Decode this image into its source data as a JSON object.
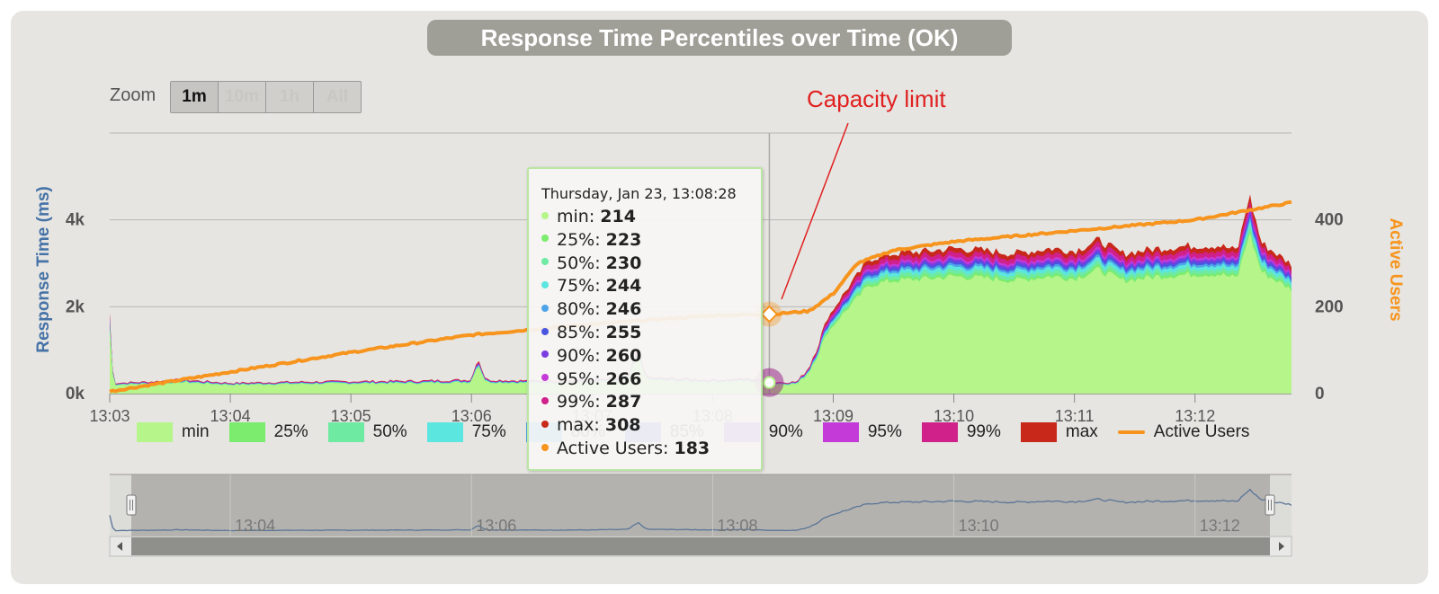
{
  "title": "Response Time Percentiles over Time (OK)",
  "zoom": {
    "label": "Zoom",
    "buttons": [
      {
        "label": "1m",
        "active": true
      },
      {
        "label": "10m",
        "active": false
      },
      {
        "label": "1h",
        "active": false
      },
      {
        "label": "All",
        "active": false
      }
    ]
  },
  "annotation": "Capacity limit",
  "tooltip": {
    "header": "Thursday, Jan 23, 13:08:28",
    "rows": [
      {
        "label": "min",
        "value": "214",
        "color": "#b5f58a"
      },
      {
        "label": "25%",
        "value": "223",
        "color": "#7bec6d"
      },
      {
        "label": "50%",
        "value": "230",
        "color": "#6eeaa3"
      },
      {
        "label": "75%",
        "value": "244",
        "color": "#5ce6e0"
      },
      {
        "label": "80%",
        "value": "246",
        "color": "#4ea4e9"
      },
      {
        "label": "85%",
        "value": "255",
        "color": "#4a55e0"
      },
      {
        "label": "90%",
        "value": "260",
        "color": "#7a3ce0"
      },
      {
        "label": "95%",
        "value": "266",
        "color": "#c43ad8"
      },
      {
        "label": "99%",
        "value": "287",
        "color": "#d0208a"
      },
      {
        "label": "max",
        "value": "308",
        "color": "#c8281a"
      },
      {
        "label": "Active Users",
        "value": "183",
        "color": "#f7941d"
      }
    ]
  },
  "chart_data": {
    "type": "area",
    "title": "Response Time Percentiles over Time (OK)",
    "x_ticks": [
      "13:03",
      "13:04",
      "13:05",
      "13:06",
      "13:07",
      "13:08",
      "13:09",
      "13:10",
      "13:11",
      "13:12"
    ],
    "y_left": {
      "label": "Response Time (ms)",
      "ticks": [
        "0k",
        "2k",
        "4k"
      ],
      "range": [
        0,
        6000
      ]
    },
    "y_right": {
      "label": "Active Users",
      "ticks": [
        "0",
        "200",
        "400"
      ],
      "range": [
        0,
        600
      ]
    },
    "x_range_minutes": [
      0,
      9.8
    ],
    "response_time_points": [
      [
        0,
        1500
      ],
      [
        0.03,
        200
      ],
      [
        0.3,
        220
      ],
      [
        0.6,
        260
      ],
      [
        1.0,
        200
      ],
      [
        1.5,
        220
      ],
      [
        2.0,
        230
      ],
      [
        2.6,
        240
      ],
      [
        3.0,
        260
      ],
      [
        3.05,
        700
      ],
      [
        3.12,
        260
      ],
      [
        3.5,
        240
      ],
      [
        4.0,
        250
      ],
      [
        4.3,
        300
      ],
      [
        4.38,
        850
      ],
      [
        4.46,
        300
      ],
      [
        5.0,
        260
      ],
      [
        5.3,
        280
      ],
      [
        5.5,
        214
      ],
      [
        5.7,
        220
      ],
      [
        5.8,
        500
      ],
      [
        5.95,
        1400
      ],
      [
        6.1,
        1900
      ],
      [
        6.3,
        2500
      ],
      [
        6.5,
        2600
      ],
      [
        6.8,
        2650
      ],
      [
        7.0,
        2700
      ],
      [
        7.3,
        2650
      ],
      [
        7.5,
        2600
      ],
      [
        7.8,
        2700
      ],
      [
        8.0,
        2650
      ],
      [
        8.2,
        2850
      ],
      [
        8.4,
        2600
      ],
      [
        8.7,
        2700
      ],
      [
        9.0,
        2750
      ],
      [
        9.2,
        2750
      ],
      [
        9.35,
        2650
      ],
      [
        9.45,
        3700
      ],
      [
        9.55,
        2800
      ],
      [
        9.8,
        2400
      ]
    ],
    "active_users_points": [
      [
        0,
        5
      ],
      [
        1,
        50
      ],
      [
        2,
        95
      ],
      [
        3,
        135
      ],
      [
        4,
        160
      ],
      [
        5,
        180
      ],
      [
        5.5,
        183
      ],
      [
        5.8,
        190
      ],
      [
        6.0,
        230
      ],
      [
        6.2,
        300
      ],
      [
        6.5,
        330
      ],
      [
        7.0,
        350
      ],
      [
        8.0,
        375
      ],
      [
        9.0,
        400
      ],
      [
        9.8,
        440
      ]
    ],
    "series": [
      {
        "name": "min",
        "color": "#b5f58a"
      },
      {
        "name": "25%",
        "color": "#7bec6d"
      },
      {
        "name": "50%",
        "color": "#6eeaa3"
      },
      {
        "name": "75%",
        "color": "#5ce6e0"
      },
      {
        "name": "80%",
        "color": "#4ea4e9"
      },
      {
        "name": "85%",
        "color": "#4a55e0"
      },
      {
        "name": "90%",
        "color": "#7a3ce0"
      },
      {
        "name": "95%",
        "color": "#c43ad8"
      },
      {
        "name": "99%",
        "color": "#d0208a"
      },
      {
        "name": "max",
        "color": "#c8281a"
      },
      {
        "name": "Active Users",
        "color": "#f7941d"
      }
    ],
    "legend": [
      {
        "name": "min",
        "color": "#b5f58a"
      },
      {
        "name": "25%",
        "color": "#7bec6d"
      },
      {
        "name": "50%",
        "color": "#6eeaa3"
      },
      {
        "name": "75%",
        "color": "#5ce6e0"
      },
      {
        "name": "80%",
        "color": "#4ea4e9"
      },
      {
        "name": "85%",
        "color": "#4a55e0"
      },
      {
        "name": "90%",
        "color": "#7a3ce0"
      },
      {
        "name": "95%",
        "color": "#c43ad8"
      },
      {
        "name": "99%",
        "color": "#d0208a"
      },
      {
        "name": "max",
        "color": "#c8281a"
      },
      {
        "name": "Active Users",
        "color": "#f7941d",
        "line": true
      }
    ],
    "hover": {
      "x_minute": 5.47,
      "response_ms": 214,
      "active_users": 183
    },
    "navigator_ticks": [
      "13:04",
      "13:06",
      "13:08",
      "13:10",
      "13:12"
    ]
  }
}
